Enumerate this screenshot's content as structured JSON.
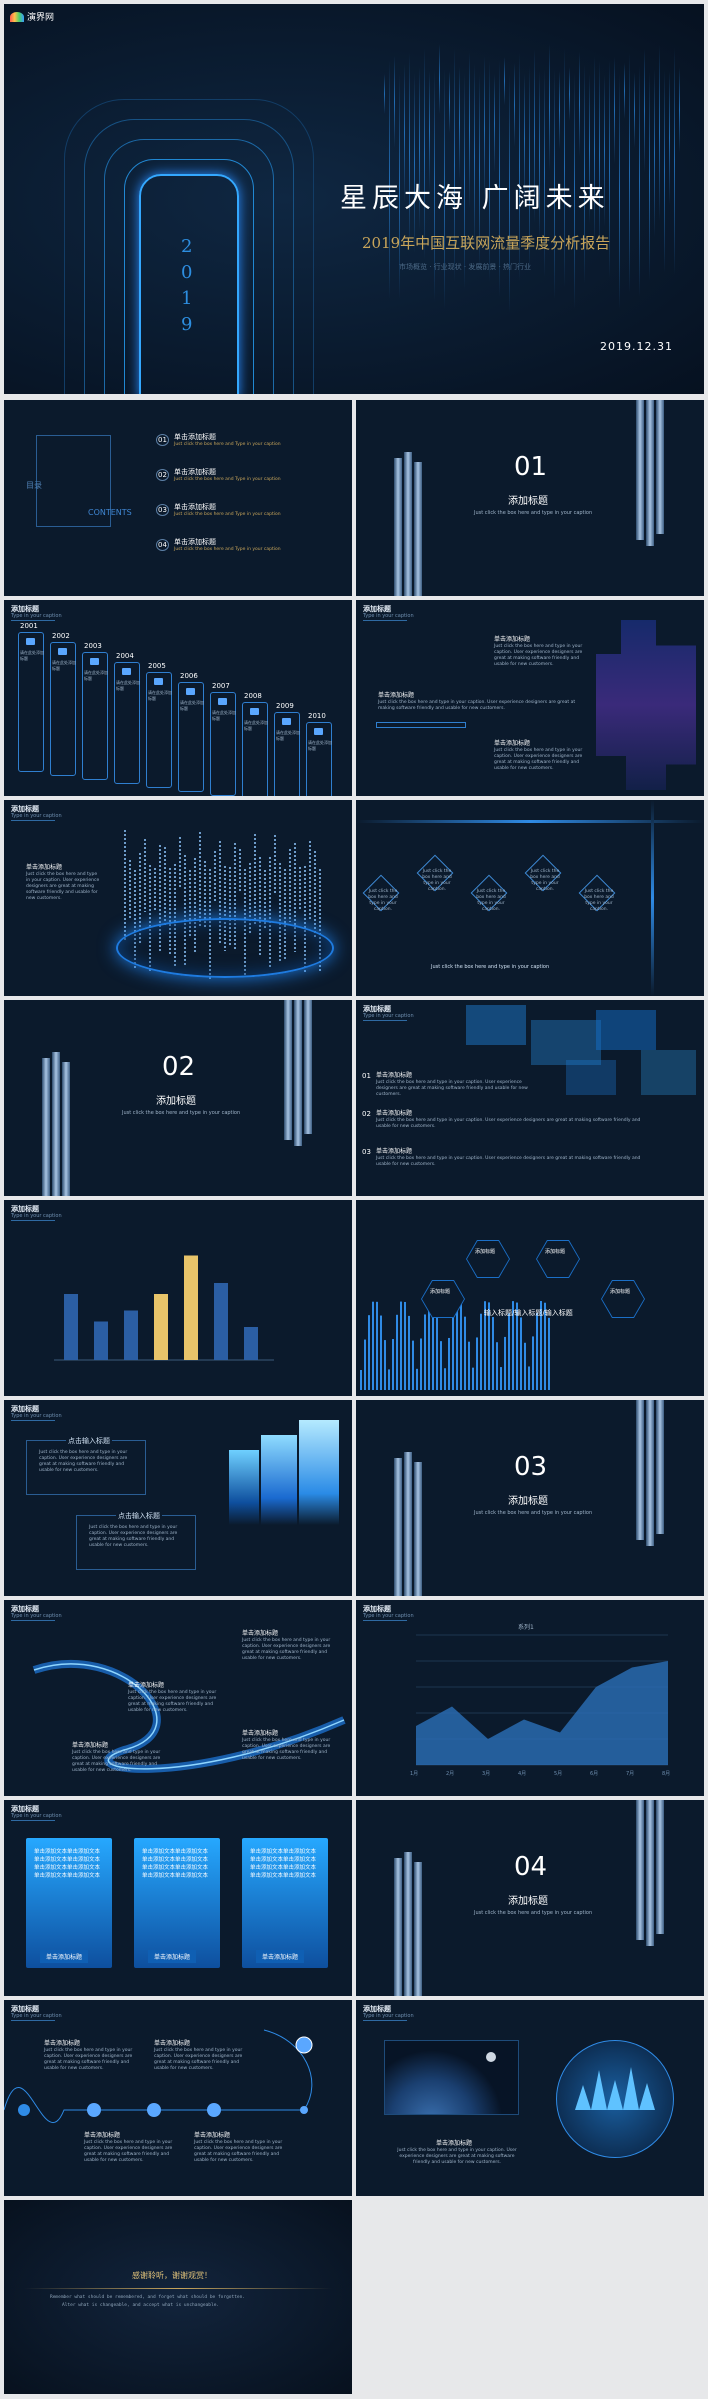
{
  "brand": {
    "name": "演界网",
    "tagline": "YANJIE.COM"
  },
  "cover": {
    "title": "星辰大海 广阔未来",
    "subtitle": "2019年中国互联网流量季度分析报告",
    "meta": "市场概览 · 行业现状 · 发展前景 · 热门行业",
    "date": "2019.12.31",
    "year_digits": [
      "2",
      "0",
      "1",
      "9"
    ]
  },
  "toc": {
    "title": "目录",
    "contents": "CONTENTS",
    "items": [
      {
        "num": "01",
        "label": "单击添加标题",
        "desc": "Just click the box here and Type in your caption"
      },
      {
        "num": "02",
        "label": "单击添加标题",
        "desc": "Just click the box here and Type in your caption"
      },
      {
        "num": "03",
        "label": "单击添加标题",
        "desc": "Just click the box here and Type in your caption"
      },
      {
        "num": "04",
        "label": "单击添加标题",
        "desc": "Just click the box here and Type in your caption"
      }
    ]
  },
  "sections": [
    {
      "num": "01",
      "title": "添加标题",
      "caption": "Just click the box here and type in your caption"
    },
    {
      "num": "02",
      "title": "添加标题",
      "caption": "Just click the box here and type in your caption"
    },
    {
      "num": "03",
      "title": "添加标题",
      "caption": "Just click the box here and type in your caption"
    },
    {
      "num": "04",
      "title": "添加标题",
      "caption": "Just click the box here and type in your caption"
    }
  ],
  "common": {
    "heading": "添加标题",
    "caption": "Type in your caption",
    "item": "单击添加标题",
    "body": "Just click the box here and type in your caption. User experience designers are great at making software friendly and usable for new customers.",
    "short": "Just click the box here and type in your caption.",
    "input": "点击输入标题",
    "placeholder": "输入标题/输入标题/输入标题"
  },
  "timeline": {
    "years": [
      "2001",
      "2002",
      "2003",
      "2004",
      "2005",
      "2006",
      "2007",
      "2008",
      "2009",
      "2010"
    ],
    "label": "请在此处添加标题"
  },
  "bars_chart": {
    "values": [
      12,
      7,
      9,
      12,
      19,
      14,
      6
    ],
    "highlight": [
      3,
      4
    ],
    "colors": {
      "base": "#2b5ea3",
      "high": "#e8c46a"
    }
  },
  "area_chart": {
    "series_name": "系列1",
    "values": [
      30,
      45,
      20,
      35,
      25,
      60,
      75,
      80
    ],
    "categories": [
      "1月",
      "2月",
      "3月",
      "4月",
      "5月",
      "6月",
      "7月",
      "8月"
    ]
  },
  "cards": [
    {
      "body": "单击添加文本单击添加文本单击添加文本单击添加文本单击添加文本单击添加文本单击添加文本单击添加文本",
      "btn": "单击添加标题"
    },
    {
      "body": "单击添加文本单击添加文本单击添加文本单击添加文本单击添加文本单击添加文本单击添加文本单击添加文本",
      "btn": "单击添加标题"
    },
    {
      "body": "单击添加文本单击添加文本单击添加文本单击添加文本单击添加文本单击添加文本单击添加文本单击添加文本",
      "btn": "单击添加标题"
    }
  ],
  "ending": {
    "title": "感谢聆听，谢谢观赏！",
    "line1": "Remember what should be remembered, and forget what should be forgotten.",
    "line2": "Alter what is changeable, and accept what is unchangeable."
  },
  "colors": {
    "bg": "#0b1a2c",
    "accent": "#2f8be6",
    "gold": "#c8a55a"
  }
}
